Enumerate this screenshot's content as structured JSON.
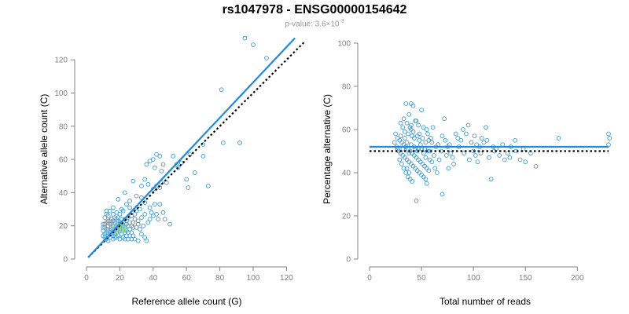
{
  "header": {
    "title": "rs1047978 - ENSG00000154642",
    "pvalue_label": "p-value: 3.6×10",
    "pvalue_exponent": "-3"
  },
  "colors": {
    "points": "#3a9ad9",
    "points_alt": "#7cc47c",
    "fit_line": "#1e88e5",
    "reference_line": "#000000",
    "axis": "#808080"
  },
  "chart_data": [
    {
      "type": "scatter",
      "title": "",
      "xlabel": "Reference allele count (G)",
      "ylabel": "Alternative allele count (C)",
      "xlim": [
        0,
        125
      ],
      "ylim": [
        0,
        130
      ],
      "xticks": [
        0,
        20,
        40,
        60,
        80,
        100,
        120
      ],
      "yticks": [
        0,
        20,
        40,
        60,
        80,
        100,
        120
      ],
      "fit_line": {
        "x": [
          1,
          125
        ],
        "y": [
          1,
          133
        ]
      },
      "reference_line": {
        "x": [
          1,
          131
        ],
        "y": [
          1,
          131
        ]
      },
      "points": [
        [
          95,
          133
        ],
        [
          100,
          129
        ],
        [
          108,
          121
        ],
        [
          81,
          102
        ],
        [
          92,
          70
        ],
        [
          82,
          70
        ],
        [
          70,
          69
        ],
        [
          73,
          44
        ],
        [
          62,
          63
        ],
        [
          70,
          62
        ],
        [
          57,
          58
        ],
        [
          60,
          48
        ],
        [
          61,
          43
        ],
        [
          65,
          52
        ],
        [
          42,
          63
        ],
        [
          44,
          62
        ],
        [
          40,
          60
        ],
        [
          46,
          57
        ],
        [
          38,
          59
        ],
        [
          45,
          53
        ],
        [
          36,
          57
        ],
        [
          41,
          55
        ],
        [
          52,
          62
        ],
        [
          54,
          57
        ],
        [
          55,
          55
        ],
        [
          35,
          48
        ],
        [
          33,
          44
        ],
        [
          37,
          45
        ],
        [
          42,
          44
        ],
        [
          45,
          46
        ],
        [
          48,
          46
        ],
        [
          44,
          43
        ],
        [
          40,
          42
        ],
        [
          28,
          47
        ],
        [
          23,
          40
        ],
        [
          30,
          38
        ],
        [
          33,
          37
        ],
        [
          26,
          35
        ],
        [
          24,
          33
        ],
        [
          35,
          34
        ],
        [
          38,
          31
        ],
        [
          41,
          33
        ],
        [
          44,
          33
        ],
        [
          46,
          28
        ],
        [
          42,
          27
        ],
        [
          39,
          28
        ],
        [
          50,
          21
        ],
        [
          47,
          24
        ],
        [
          43,
          24
        ],
        [
          29,
          27
        ],
        [
          22,
          29
        ],
        [
          21,
          30
        ],
        [
          20,
          27
        ],
        [
          18,
          28
        ],
        [
          16,
          27
        ],
        [
          14,
          29
        ],
        [
          13,
          26
        ],
        [
          12,
          27
        ],
        [
          11,
          25
        ],
        [
          13,
          23
        ],
        [
          15,
          22
        ],
        [
          17,
          22
        ],
        [
          19,
          23
        ],
        [
          21,
          24
        ],
        [
          23,
          24
        ],
        [
          25,
          25
        ],
        [
          27,
          26
        ],
        [
          29,
          24
        ],
        [
          31,
          23
        ],
        [
          33,
          25
        ],
        [
          35,
          27
        ],
        [
          30,
          29
        ],
        [
          26,
          31
        ],
        [
          32,
          30
        ],
        [
          19,
          36
        ],
        [
          16,
          31
        ],
        [
          12,
          29
        ],
        [
          10,
          21
        ],
        [
          10,
          17
        ],
        [
          11,
          15
        ],
        [
          12,
          12
        ],
        [
          13,
          14
        ],
        [
          14,
          16
        ],
        [
          15,
          18
        ],
        [
          16,
          20
        ],
        [
          17,
          18
        ],
        [
          18,
          16
        ],
        [
          19,
          14
        ],
        [
          20,
          12
        ],
        [
          21,
          15
        ],
        [
          22,
          17
        ],
        [
          23,
          19
        ],
        [
          24,
          21
        ],
        [
          25,
          20
        ],
        [
          26,
          18
        ],
        [
          27,
          16
        ],
        [
          28,
          14
        ],
        [
          29,
          12
        ],
        [
          11,
          19
        ],
        [
          12,
          18
        ],
        [
          13,
          20
        ],
        [
          14,
          21
        ],
        [
          15,
          19
        ],
        [
          16,
          17
        ],
        [
          17,
          15
        ],
        [
          18,
          13
        ],
        [
          19,
          21
        ],
        [
          20,
          19
        ],
        [
          21,
          21
        ],
        [
          22,
          22
        ],
        [
          23,
          16
        ],
        [
          24,
          14
        ],
        [
          25,
          12
        ],
        [
          26,
          22
        ],
        [
          27,
          20
        ],
        [
          28,
          19
        ],
        [
          12,
          16
        ],
        [
          13,
          17
        ],
        [
          14,
          13
        ],
        [
          15,
          15
        ],
        [
          16,
          14
        ],
        [
          17,
          13
        ],
        [
          18,
          20
        ],
        [
          19,
          18
        ],
        [
          20,
          17
        ],
        [
          21,
          19
        ],
        [
          10,
          14
        ],
        [
          11,
          13
        ],
        [
          22,
          13
        ],
        [
          23,
          12
        ],
        [
          24,
          17
        ],
        [
          25,
          16
        ],
        [
          30,
          19
        ],
        [
          31,
          21
        ],
        [
          32,
          18
        ],
        [
          33,
          15
        ],
        [
          35,
          13
        ],
        [
          36,
          11
        ],
        [
          34,
          20
        ],
        [
          37,
          22
        ],
        [
          38,
          24
        ],
        [
          40,
          26
        ],
        [
          31,
          11
        ],
        [
          28,
          22
        ],
        [
          27,
          12
        ],
        [
          15,
          24
        ],
        [
          17,
          25
        ],
        [
          14,
          23
        ],
        [
          19,
          25
        ],
        [
          13,
          11
        ],
        [
          16,
          12
        ],
        [
          18,
          24
        ],
        [
          20,
          22
        ],
        [
          22,
          20
        ],
        [
          24,
          23
        ],
        [
          26,
          14
        ],
        [
          12,
          22
        ],
        [
          10,
          19
        ],
        [
          11,
          21
        ],
        [
          16,
          23
        ]
      ],
      "green_points": [
        [
          17,
          19
        ],
        [
          18,
          18
        ],
        [
          19,
          19
        ],
        [
          20,
          20
        ],
        [
          21,
          18
        ],
        [
          22,
          19
        ],
        [
          18,
          21
        ],
        [
          19,
          17
        ],
        [
          20,
          18
        ],
        [
          17,
          17
        ],
        [
          21,
          21
        ],
        [
          22,
          17
        ],
        [
          23,
          18
        ],
        [
          16,
          18
        ],
        [
          19,
          20
        ]
      ]
    },
    {
      "type": "scatter",
      "title": "",
      "xlabel": "Total number of reads",
      "ylabel": "Percentage alternative (C)",
      "xlim": [
        0,
        230
      ],
      "ylim": [
        0,
        100
      ],
      "xticks": [
        0,
        50,
        100,
        150,
        200
      ],
      "yticks": [
        0,
        20,
        40,
        60,
        80,
        100
      ],
      "fit_line": {
        "x": [
          0,
          230
        ],
        "y": [
          52,
          52
        ]
      },
      "reference_line": {
        "x": [
          0,
          230
        ],
        "y": [
          50,
          50
        ]
      },
      "points": [
        [
          35,
          72
        ],
        [
          40,
          72
        ],
        [
          42,
          71
        ],
        [
          50,
          69
        ],
        [
          38,
          67
        ],
        [
          45,
          64
        ],
        [
          33,
          65
        ],
        [
          36,
          63
        ],
        [
          40,
          62
        ],
        [
          44,
          64
        ],
        [
          47,
          62
        ],
        [
          52,
          61
        ],
        [
          55,
          60
        ],
        [
          30,
          63
        ],
        [
          32,
          61
        ],
        [
          34,
          59
        ],
        [
          37,
          58
        ],
        [
          39,
          61
        ],
        [
          41,
          57
        ],
        [
          43,
          56
        ],
        [
          46,
          57
        ],
        [
          48,
          55
        ],
        [
          51,
          56
        ],
        [
          54,
          54
        ],
        [
          57,
          55
        ],
        [
          60,
          54
        ],
        [
          25,
          58
        ],
        [
          27,
          56
        ],
        [
          29,
          55
        ],
        [
          31,
          54
        ],
        [
          33,
          53
        ],
        [
          35,
          52
        ],
        [
          37,
          51
        ],
        [
          39,
          50
        ],
        [
          41,
          49
        ],
        [
          43,
          48
        ],
        [
          45,
          47
        ],
        [
          47,
          46
        ],
        [
          49,
          45
        ],
        [
          51,
          44
        ],
        [
          53,
          43
        ],
        [
          55,
          42
        ],
        [
          57,
          41
        ],
        [
          26,
          52
        ],
        [
          28,
          50
        ],
        [
          30,
          49
        ],
        [
          32,
          48
        ],
        [
          34,
          47
        ],
        [
          36,
          46
        ],
        [
          38,
          45
        ],
        [
          40,
          44
        ],
        [
          42,
          43
        ],
        [
          44,
          42
        ],
        [
          46,
          41
        ],
        [
          48,
          40
        ],
        [
          50,
          39
        ],
        [
          52,
          38
        ],
        [
          54,
          37
        ],
        [
          29,
          46
        ],
        [
          31,
          44
        ],
        [
          33,
          42
        ],
        [
          35,
          40
        ],
        [
          37,
          38
        ],
        [
          39,
          37
        ],
        [
          41,
          36
        ],
        [
          58,
          50
        ],
        [
          62,
          48
        ],
        [
          64,
          52
        ],
        [
          66,
          53
        ],
        [
          70,
          57
        ],
        [
          73,
          55
        ],
        [
          75,
          52
        ],
        [
          78,
          49
        ],
        [
          80,
          47
        ],
        [
          83,
          58
        ],
        [
          85,
          56
        ],
        [
          88,
          55
        ],
        [
          90,
          60
        ],
        [
          93,
          58
        ],
        [
          95,
          62
        ],
        [
          98,
          54
        ],
        [
          100,
          50
        ],
        [
          102,
          48
        ],
        [
          104,
          45
        ],
        [
          106,
          52
        ],
        [
          108,
          56
        ],
        [
          110,
          54
        ],
        [
          112,
          61
        ],
        [
          115,
          47
        ],
        [
          117,
          37
        ],
        [
          120,
          50
        ],
        [
          122,
          51
        ],
        [
          130,
          46
        ],
        [
          133,
          49
        ],
        [
          136,
          52
        ],
        [
          141,
          50
        ],
        [
          145,
          46
        ],
        [
          150,
          45
        ],
        [
          160,
          43
        ],
        [
          182,
          56
        ],
        [
          230,
          58
        ],
        [
          231,
          56
        ],
        [
          230,
          53
        ],
        [
          70,
          30
        ],
        [
          45,
          27
        ],
        [
          65,
          40
        ],
        [
          72,
          65
        ],
        [
          76,
          42
        ],
        [
          60,
          45
        ],
        [
          55,
          35
        ],
        [
          49,
          53
        ],
        [
          53,
          51
        ],
        [
          56,
          58
        ],
        [
          59,
          56
        ],
        [
          61,
          61
        ],
        [
          63,
          42
        ],
        [
          67,
          46
        ],
        [
          69,
          50
        ],
        [
          74,
          48
        ],
        [
          77,
          53
        ],
        [
          81,
          44
        ],
        [
          86,
          52
        ],
        [
          91,
          49
        ],
        [
          96,
          46
        ],
        [
          101,
          57
        ],
        [
          103,
          53
        ],
        [
          107,
          49
        ],
        [
          113,
          55
        ],
        [
          119,
          52
        ],
        [
          125,
          48
        ],
        [
          128,
          53
        ],
        [
          135,
          47
        ],
        [
          140,
          55
        ],
        [
          148,
          51
        ],
        [
          155,
          49
        ],
        [
          24,
          54
        ],
        [
          27,
          51
        ],
        [
          30,
          57
        ],
        [
          32,
          51
        ],
        [
          34,
          56
        ],
        [
          36,
          54
        ],
        [
          38,
          49
        ],
        [
          40,
          53
        ],
        [
          42,
          59
        ],
        [
          44,
          51
        ],
        [
          46,
          50
        ],
        [
          48,
          58
        ],
        [
          50,
          51
        ],
        [
          52,
          49
        ],
        [
          54,
          47
        ],
        [
          56,
          50
        ],
        [
          58,
          46
        ],
        [
          36,
          42
        ],
        [
          38,
          40
        ],
        [
          40,
          60
        ],
        [
          43,
          52
        ],
        [
          47,
          51
        ]
      ]
    }
  ]
}
